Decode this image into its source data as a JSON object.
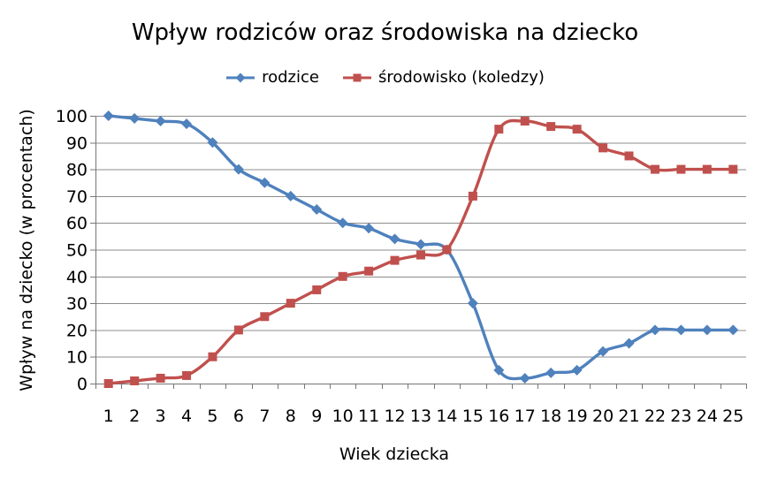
{
  "title": "Wpływ rodziców oraz środowiska na dziecko",
  "chart_data": {
    "type": "line",
    "x": [
      1,
      2,
      3,
      4,
      5,
      6,
      7,
      8,
      9,
      10,
      11,
      12,
      13,
      14,
      15,
      16,
      17,
      18,
      19,
      20,
      21,
      22,
      23,
      24,
      25
    ],
    "series": [
      {
        "name": "rodzice",
        "color": "#4F81BD",
        "marker": "diamond",
        "values": [
          100,
          99,
          98,
          97,
          90,
          80,
          75,
          70,
          65,
          60,
          58,
          54,
          52,
          50,
          30,
          5,
          2,
          4,
          5,
          12,
          15,
          20,
          20,
          20,
          20
        ]
      },
      {
        "name": "środowisko (koledzy)",
        "color": "#C0504D",
        "marker": "square",
        "values": [
          0,
          1,
          2,
          3,
          10,
          20,
          25,
          30,
          35,
          40,
          42,
          46,
          48,
          50,
          70,
          95,
          98,
          96,
          95,
          88,
          85,
          80,
          80,
          80,
          80
        ]
      }
    ],
    "title": "Wpływ rodziców oraz środowiska na dziecko",
    "xlabel": "Wiek dziecka",
    "ylabel": "Wpływ na dziecko (w procentach)",
    "ylim": [
      0,
      100
    ],
    "ytick_step": 10,
    "yticks": [
      0,
      10,
      20,
      30,
      40,
      50,
      60,
      70,
      80,
      90,
      100
    ],
    "grid": true,
    "smooth": true,
    "legend_position": "top"
  },
  "colors": {
    "background": "#FFFFFF",
    "grid": "#8C8C8C",
    "axis": "#777777",
    "text": "#000000"
  }
}
